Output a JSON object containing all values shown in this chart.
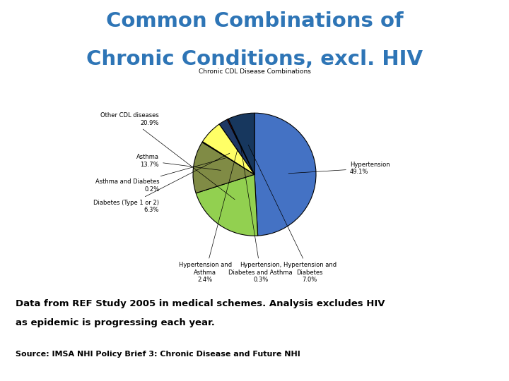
{
  "title_line1": "Common Combinations of",
  "title_line2": "Chronic Conditions, excl. HIV",
  "title_color": "#2E75B6",
  "chart_title": "Chronic CDL Disease Combinations",
  "values": [
    49.1,
    20.9,
    13.7,
    0.2,
    6.3,
    2.4,
    0.3,
    7.0
  ],
  "colors": [
    "#4472C4",
    "#92D050",
    "#808B45",
    "#707030",
    "#FFFF66",
    "#1F3864",
    "#C00000",
    "#17375E"
  ],
  "slice_labels": [
    "Hypertension\n49.1%",
    "Other CDL diseases\n20.9%",
    "Asthma\n13.7%",
    "Asthma and Diabetes\n0.2%",
    "Diabetes (Type 1 or 2)\n6.3%",
    "Hypertension and\nAsthma\n2.4%",
    "Hypertension,\nDiabetes and Asthma\n0.3%",
    "Hypertension and\nDiabetes\n7.0%"
  ],
  "footnote1": "Data from REF Study 2005 in medical schemes. Analysis excludes HIV",
  "footnote2": "as epidemic is progressing each year.",
  "source": "Source: IMSA NHI Policy Brief 3: Chronic Disease and Future NHI",
  "background_color": "#FFFFFF"
}
